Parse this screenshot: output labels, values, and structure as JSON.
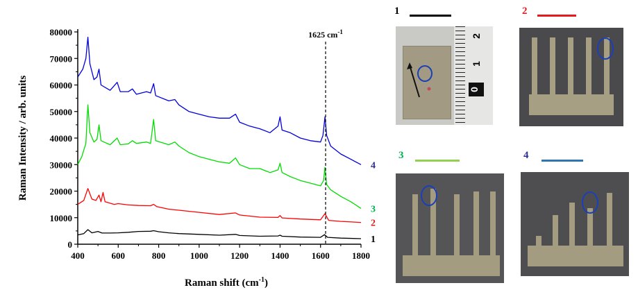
{
  "chart_data": {
    "type": "line",
    "xlabel": "Raman shift (cm",
    "xlabel_sup": "-1",
    "xlabel_tail": ")",
    "ylabel": "Raman Intensity / arb. units",
    "xlim": [
      400,
      1800
    ],
    "ylim": [
      0,
      80000
    ],
    "xticks": [
      400,
      600,
      800,
      1000,
      1200,
      1400,
      1600,
      1800
    ],
    "yticks": [
      0,
      10000,
      20000,
      30000,
      40000,
      50000,
      60000,
      70000,
      80000
    ],
    "annotation": {
      "x": 1625,
      "text": "1625 cm",
      "sup": "-1"
    },
    "series": [
      {
        "label": "1",
        "color": "#000000",
        "points": [
          [
            400,
            3500
          ],
          [
            430,
            4000
          ],
          [
            450,
            5500
          ],
          [
            470,
            4300
          ],
          [
            500,
            4800
          ],
          [
            520,
            4200
          ],
          [
            560,
            4200
          ],
          [
            600,
            4300
          ],
          [
            650,
            4500
          ],
          [
            700,
            4800
          ],
          [
            760,
            4900
          ],
          [
            775,
            5100
          ],
          [
            800,
            4700
          ],
          [
            850,
            4300
          ],
          [
            900,
            4000
          ],
          [
            1000,
            3700
          ],
          [
            1100,
            3400
          ],
          [
            1180,
            3700
          ],
          [
            1200,
            3300
          ],
          [
            1300,
            3000
          ],
          [
            1390,
            3100
          ],
          [
            1400,
            3400
          ],
          [
            1410,
            3000
          ],
          [
            1500,
            2700
          ],
          [
            1600,
            2600
          ],
          [
            1620,
            3600
          ],
          [
            1635,
            2600
          ],
          [
            1700,
            2300
          ],
          [
            1800,
            2100
          ]
        ]
      },
      {
        "label": "2",
        "color": "#ff0000",
        "points": [
          [
            400,
            15000
          ],
          [
            430,
            16500
          ],
          [
            450,
            21000
          ],
          [
            470,
            17000
          ],
          [
            490,
            16500
          ],
          [
            505,
            18500
          ],
          [
            515,
            16000
          ],
          [
            525,
            19500
          ],
          [
            535,
            16000
          ],
          [
            580,
            15000
          ],
          [
            600,
            15300
          ],
          [
            650,
            14800
          ],
          [
            700,
            14600
          ],
          [
            760,
            14500
          ],
          [
            775,
            15000
          ],
          [
            790,
            14200
          ],
          [
            850,
            13200
          ],
          [
            900,
            12800
          ],
          [
            1000,
            12000
          ],
          [
            1100,
            11200
          ],
          [
            1180,
            11800
          ],
          [
            1200,
            11000
          ],
          [
            1300,
            10200
          ],
          [
            1390,
            10100
          ],
          [
            1400,
            10800
          ],
          [
            1410,
            9900
          ],
          [
            1500,
            9500
          ],
          [
            1600,
            9200
          ],
          [
            1622,
            11500
          ],
          [
            1640,
            9000
          ],
          [
            1700,
            8600
          ],
          [
            1800,
            8200
          ]
        ]
      },
      {
        "label": "3",
        "color": "#00dd00",
        "points": [
          [
            400,
            30000
          ],
          [
            420,
            33000
          ],
          [
            440,
            38000
          ],
          [
            450,
            52500
          ],
          [
            460,
            42000
          ],
          [
            480,
            38500
          ],
          [
            495,
            39500
          ],
          [
            505,
            45000
          ],
          [
            515,
            39000
          ],
          [
            560,
            37500
          ],
          [
            595,
            40000
          ],
          [
            610,
            37500
          ],
          [
            650,
            37800
          ],
          [
            670,
            39000
          ],
          [
            690,
            38000
          ],
          [
            740,
            38500
          ],
          [
            760,
            38000
          ],
          [
            775,
            47000
          ],
          [
            785,
            39000
          ],
          [
            850,
            37500
          ],
          [
            880,
            38500
          ],
          [
            900,
            37000
          ],
          [
            950,
            34500
          ],
          [
            1000,
            33000
          ],
          [
            1050,
            32000
          ],
          [
            1100,
            31000
          ],
          [
            1150,
            30500
          ],
          [
            1180,
            32500
          ],
          [
            1200,
            30000
          ],
          [
            1250,
            28500
          ],
          [
            1300,
            28500
          ],
          [
            1350,
            27000
          ],
          [
            1390,
            28000
          ],
          [
            1400,
            30500
          ],
          [
            1410,
            27000
          ],
          [
            1450,
            25500
          ],
          [
            1500,
            24000
          ],
          [
            1550,
            23000
          ],
          [
            1600,
            22000
          ],
          [
            1615,
            24000
          ],
          [
            1622,
            29000
          ],
          [
            1630,
            22500
          ],
          [
            1650,
            20500
          ],
          [
            1700,
            18000
          ],
          [
            1750,
            16000
          ],
          [
            1800,
            13500
          ]
        ]
      },
      {
        "label": "4",
        "color": "#0000dd",
        "points": [
          [
            400,
            63000
          ],
          [
            425,
            66000
          ],
          [
            440,
            70000
          ],
          [
            450,
            78000
          ],
          [
            460,
            68000
          ],
          [
            480,
            62000
          ],
          [
            495,
            63000
          ],
          [
            505,
            66000
          ],
          [
            515,
            60000
          ],
          [
            560,
            58000
          ],
          [
            595,
            61000
          ],
          [
            610,
            57500
          ],
          [
            650,
            57500
          ],
          [
            670,
            58500
          ],
          [
            690,
            56500
          ],
          [
            740,
            57500
          ],
          [
            760,
            57000
          ],
          [
            775,
            60500
          ],
          [
            785,
            56000
          ],
          [
            850,
            54000
          ],
          [
            880,
            54500
          ],
          [
            900,
            52500
          ],
          [
            950,
            50000
          ],
          [
            1000,
            49000
          ],
          [
            1050,
            48000
          ],
          [
            1100,
            47500
          ],
          [
            1150,
            47500
          ],
          [
            1180,
            49000
          ],
          [
            1200,
            46000
          ],
          [
            1250,
            44500
          ],
          [
            1300,
            43500
          ],
          [
            1350,
            42000
          ],
          [
            1390,
            44500
          ],
          [
            1400,
            48000
          ],
          [
            1410,
            43000
          ],
          [
            1450,
            42000
          ],
          [
            1500,
            40000
          ],
          [
            1550,
            39000
          ],
          [
            1600,
            38500
          ],
          [
            1612,
            41000
          ],
          [
            1622,
            48000
          ],
          [
            1630,
            41000
          ],
          [
            1650,
            37000
          ],
          [
            1700,
            34000
          ],
          [
            1750,
            32000
          ],
          [
            1800,
            30000
          ]
        ]
      }
    ]
  },
  "photos": [
    {
      "label": "1",
      "color": "#000000"
    },
    {
      "label": "2",
      "color": "#e41a1c"
    },
    {
      "label": "3",
      "color": "#00b050"
    },
    {
      "label": "4",
      "color": "#2e3192"
    }
  ],
  "ruler_marks": [
    "2",
    "1",
    "0"
  ]
}
